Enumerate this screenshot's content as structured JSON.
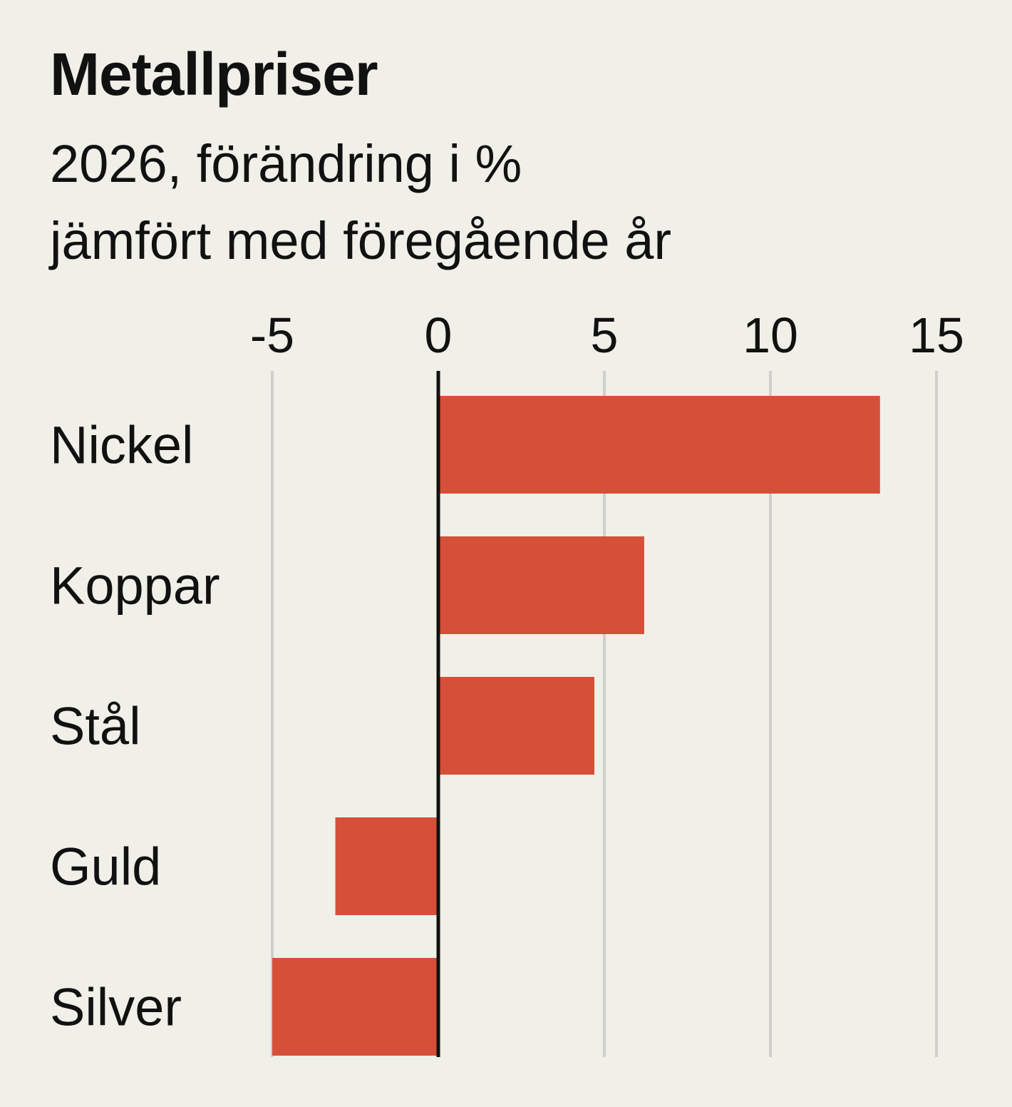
{
  "header": {
    "title": "Metallpriser",
    "subtitle_line1": "2026, förändring i %",
    "subtitle_line2": "jämfört med föregående år"
  },
  "colors": {
    "background": "#f0efe8",
    "bar": "#d64f38",
    "grid": "#cfcfcc",
    "zero_line": "#111111",
    "text": "#111111"
  },
  "chart_data": {
    "type": "bar",
    "orientation": "horizontal",
    "title": "Metallpriser",
    "subtitle": "2026, förändring i % jämfört med föregående år",
    "categories": [
      "Nickel",
      "Koppar",
      "Stål",
      "Guld",
      "Silver"
    ],
    "values": [
      13.3,
      6.2,
      4.7,
      -3.1,
      -5.0
    ],
    "xlim": [
      -5,
      15
    ],
    "xticks": [
      -5,
      0,
      5,
      10,
      15
    ],
    "xtick_labels": [
      "-5",
      "0",
      "5",
      "10",
      "15"
    ],
    "xlabel": "",
    "ylabel": "",
    "grid": true,
    "axis_position": "top"
  }
}
